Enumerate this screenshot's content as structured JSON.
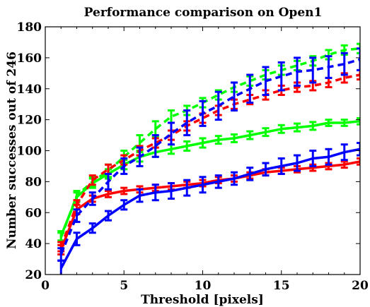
{
  "chart_data": {
    "type": "line",
    "title": "Performance comparison on Open1",
    "xlabel": "Threshold [pixels]",
    "ylabel": "Number successes out of 246",
    "xlim": [
      0,
      20
    ],
    "ylim": [
      20,
      180
    ],
    "xticks": [
      0,
      5,
      10,
      15,
      20
    ],
    "yticks": [
      20,
      40,
      60,
      80,
      100,
      120,
      140,
      160,
      180
    ],
    "grid": false,
    "legend": "none",
    "x": [
      1,
      2,
      3,
      4,
      5,
      6,
      7,
      8,
      9,
      10,
      11,
      12,
      13,
      14,
      15,
      16,
      17,
      18,
      19,
      20
    ],
    "series": [
      {
        "color": "#00ff00",
        "style": "solid",
        "values": [
          45,
          70,
          79,
          85,
          91,
          96,
          99,
          101,
          103,
          105,
          107,
          108,
          110,
          112,
          114,
          115,
          116,
          118,
          118,
          119
        ],
        "errors": [
          3,
          3,
          3,
          3,
          3,
          3,
          3,
          3,
          3,
          3,
          2.5,
          2.5,
          2.5,
          2.5,
          2.5,
          2.5,
          2.5,
          2,
          2,
          2
        ]
      },
      {
        "color": "#00ff00",
        "style": "dashed",
        "values": [
          44,
          71,
          80,
          87,
          96,
          105,
          114,
          122,
          126,
          131,
          136,
          141,
          145,
          149,
          152,
          155,
          158,
          162,
          165,
          166
        ],
        "errors": [
          3,
          3,
          3,
          4,
          4,
          5,
          5,
          4,
          3,
          3,
          3,
          3,
          3,
          3,
          3,
          3,
          3,
          3,
          3,
          3
        ]
      },
      {
        "color": "#ff0000",
        "style": "solid",
        "values": [
          36,
          62,
          69,
          72,
          74,
          75,
          76,
          77,
          78,
          79,
          81,
          82,
          84,
          86,
          87,
          88,
          89,
          90,
          91,
          93
        ],
        "errors": [
          3,
          3,
          2,
          2,
          2,
          2,
          2,
          2,
          2,
          2,
          2,
          2,
          2,
          2,
          2,
          2,
          2,
          2,
          2,
          2
        ]
      },
      {
        "color": "#ff0000",
        "style": "dashed",
        "values": [
          38,
          65,
          81,
          88,
          94,
          100,
          105,
          110,
          116,
          121,
          126,
          130,
          133,
          136,
          139,
          141,
          142,
          144,
          147,
          149
        ],
        "errors": [
          3,
          3,
          3,
          3,
          3,
          3,
          3,
          3,
          3,
          3,
          3,
          3,
          3,
          3,
          3,
          3,
          3,
          3,
          3,
          3
        ]
      },
      {
        "color": "#0000ff",
        "style": "solid",
        "values": [
          24,
          43,
          50,
          58,
          65,
          71,
          73,
          74,
          76,
          78,
          80,
          82,
          85,
          88,
          90,
          92,
          95,
          96,
          99,
          101
        ],
        "errors": [
          5,
          4,
          3,
          3,
          3,
          4,
          5,
          5,
          5,
          5,
          4,
          4,
          4,
          4,
          5,
          5,
          5,
          5,
          5,
          4
        ]
      },
      {
        "color": "#0000ff",
        "style": "dashed",
        "values": [
          33,
          58,
          69,
          80,
          90,
          96,
          103,
          111,
          118,
          124,
          129,
          135,
          140,
          145,
          148,
          151,
          152,
          154,
          156,
          159
        ],
        "errors": [
          4,
          4,
          4,
          5,
          5,
          6,
          7,
          7,
          8,
          8,
          9,
          9,
          9,
          9,
          9,
          9,
          8,
          7,
          7,
          7
        ]
      }
    ]
  }
}
